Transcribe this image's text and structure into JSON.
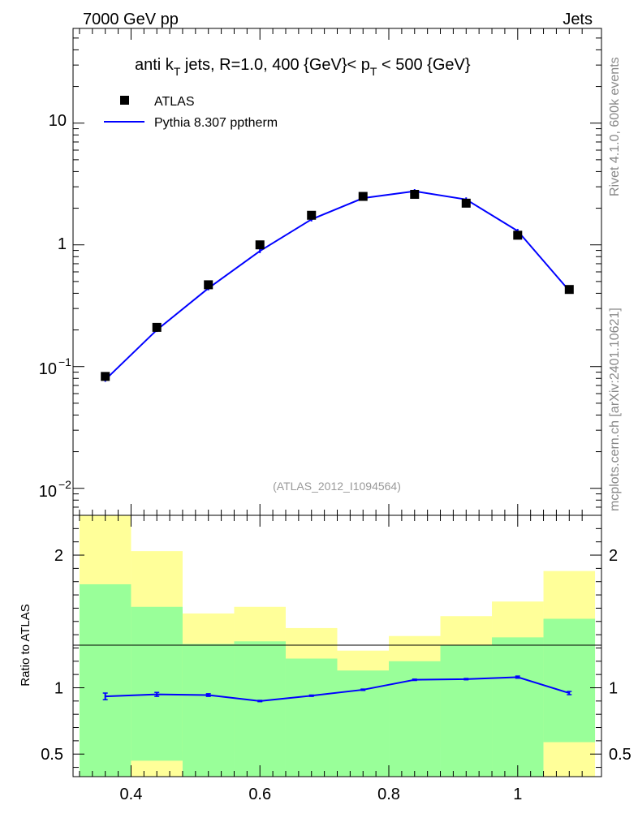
{
  "header": {
    "left": "7000 GeV pp",
    "right": "Jets"
  },
  "side_labels": {
    "rivet": "Rivet 4.1.0,  600k events",
    "mcplots": "mcplots.cern.ch [arXiv:2401.10621]"
  },
  "chart_data": [
    {
      "type": "scatter",
      "panel": "main",
      "title_parts": {
        "a": "anti k",
        "a_sub": "T",
        "b": " jets, R=1.0,  400 {GeV}< p",
        "b_sub": "T",
        "c": " < 500 {GeV}"
      },
      "analysis_label": "(ATLAS_2012_I1094564)",
      "yscale": "log",
      "xlim": [
        0.31,
        1.13
      ],
      "ylim": [
        0.006,
        60
      ],
      "ytick_labels": {
        "t10": "10",
        "t1": "1",
        "t01_base": "10",
        "t01_exp": "−1",
        "t001_base": "10",
        "t001_exp": "−2"
      },
      "legend": {
        "data": "ATLAS",
        "mc": "Pythia 8.307 pptherm",
        "position": "top-left"
      },
      "series": [
        {
          "name": "ATLAS",
          "marker": "square",
          "color": "#000000",
          "x": [
            0.36,
            0.44,
            0.52,
            0.6,
            0.68,
            0.76,
            0.84,
            0.92,
            1.0,
            1.08
          ],
          "y": [
            0.083,
            0.21,
            0.47,
            1.0,
            1.75,
            2.5,
            2.6,
            2.2,
            1.2,
            0.43
          ]
        },
        {
          "name": "Pythia 8.307 pptherm",
          "marker": "line",
          "color": "#0000ff",
          "x": [
            0.36,
            0.44,
            0.52,
            0.6,
            0.68,
            0.76,
            0.84,
            0.92,
            1.0,
            1.08
          ],
          "y": [
            0.078,
            0.2,
            0.44,
            0.89,
            1.62,
            2.42,
            2.76,
            2.36,
            1.3,
            0.42
          ]
        }
      ]
    },
    {
      "type": "line",
      "panel": "ratio",
      "ylabel": "Ratio to ATLAS",
      "xlim": [
        0.31,
        1.13
      ],
      "ylim": [
        0.33,
        2.3
      ],
      "xtick_labels": [
        "0.4",
        "0.6",
        "0.8",
        "1"
      ],
      "ytick_labels": [
        "0.5",
        "1",
        "2"
      ],
      "bins": [
        0.32,
        0.4,
        0.48,
        0.56,
        0.64,
        0.72,
        0.8,
        0.88,
        0.96,
        1.04,
        1.12
      ],
      "band_1sigma": {
        "color": "#99ff99",
        "low": [
          0.3,
          0.45,
          0.3,
          0.3,
          0.3,
          0.3,
          0.3,
          0.3,
          0.3,
          0.59
        ],
        "high": [
          1.78,
          1.61,
          1.33,
          1.35,
          1.22,
          1.13,
          1.2,
          1.32,
          1.38,
          1.52
        ]
      },
      "band_2sigma": {
        "color": "#ffff99",
        "low": [
          0.3,
          0.3,
          0.52,
          0.45,
          0.68,
          0.82,
          0.74,
          0.55,
          0.37,
          0.3
        ],
        "high": [
          2.3,
          2.03,
          1.56,
          1.61,
          1.45,
          1.28,
          1.39,
          1.54,
          1.65,
          1.88
        ]
      },
      "series": [
        {
          "name": "Pythia 8.307 pptherm",
          "color": "#0000ff",
          "x": [
            0.36,
            0.44,
            0.52,
            0.6,
            0.68,
            0.76,
            0.84,
            0.92,
            1.0,
            1.08
          ],
          "y": [
            0.935,
            0.95,
            0.945,
            0.9,
            0.94,
            0.985,
            1.06,
            1.065,
            1.08,
            0.96
          ],
          "err": [
            0.025,
            0.015,
            0.01,
            0.005,
            0.005,
            0.005,
            0.005,
            0.005,
            0.008,
            0.012
          ]
        }
      ]
    }
  ]
}
